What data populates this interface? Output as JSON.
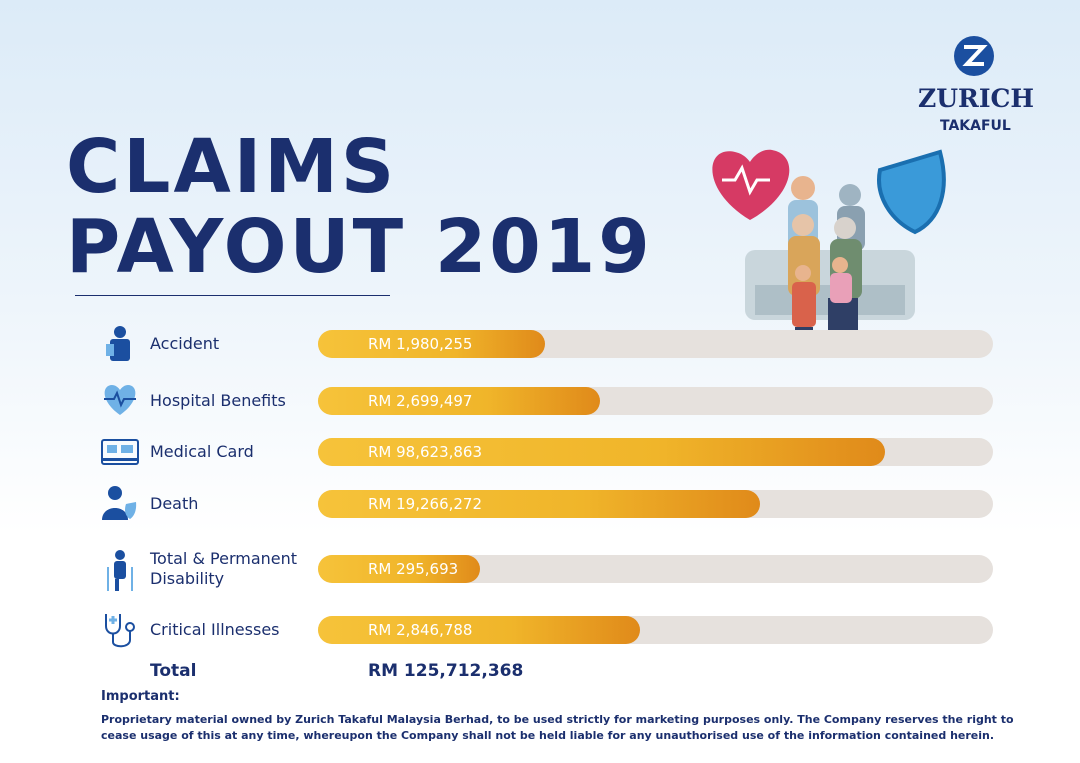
{
  "logo": {
    "name": "ZURICH",
    "subtitle": "TAKAFUL"
  },
  "header": {
    "title_line1": "CLAIMS",
    "title_line2": "PAYOUT 2019"
  },
  "items": [
    {
      "label": "Accident",
      "amount": "RM 1,980,255"
    },
    {
      "label": "Hospital Benefits",
      "amount": "RM 2,699,497"
    },
    {
      "label": "Medical Card",
      "amount": "RM 98,623,863"
    },
    {
      "label": "Death",
      "amount": "RM 19,266,272"
    },
    {
      "label": "Total & Permanent Disability",
      "amount": "RM 295,693"
    },
    {
      "label": "Critical Illnesses",
      "amount": "RM 2,846,788"
    }
  ],
  "total": {
    "label": "Total",
    "amount": "RM 125,712,368"
  },
  "notice": {
    "heading": "Important:",
    "text": "Proprietary material owned by  Zurich Takaful Malaysia Berhad, to be used strictly for marketing purposes only. The Company reserves the right to cease usage of this at any time, whereupon the Company shall not be held liable for any unauthorised use of the information contained herein."
  }
}
